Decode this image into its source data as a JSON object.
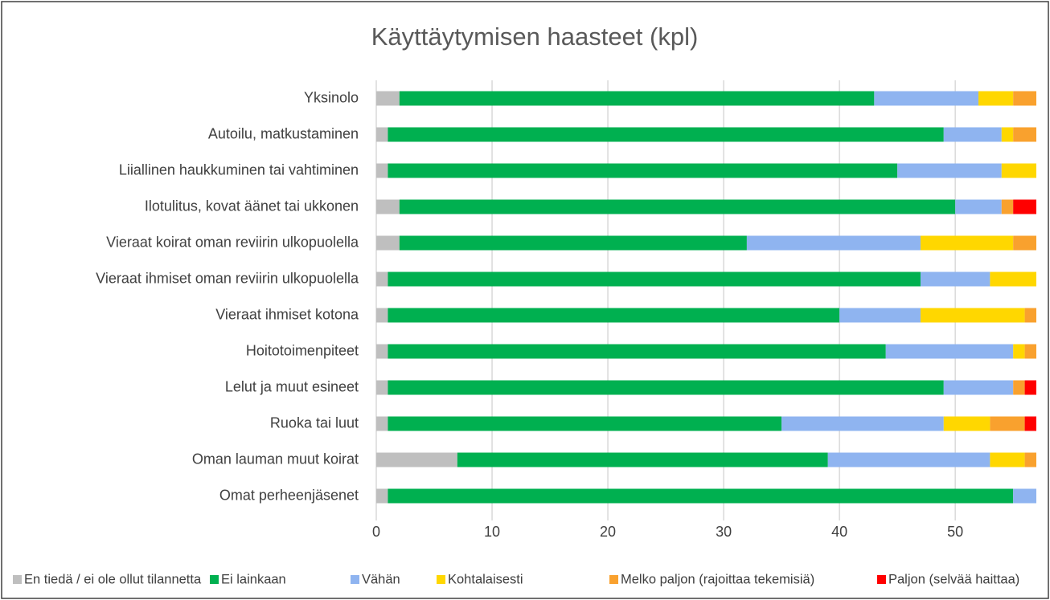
{
  "chart_data": {
    "type": "stacked_barh",
    "title": "Käyttäytymisen haasteet (kpl)",
    "categories": [
      "Yksinolo",
      "Autoilu, matkustaminen",
      "Liiallinen haukkuminen tai vahtiminen",
      "Ilotulitus, kovat äänet tai ukkonen",
      "Vieraat koirat oman reviirin ulkopuolella",
      "Vieraat ihmiset oman reviirin ulkopuolella",
      "Vieraat ihmiset kotona",
      "Hoitotoimenpiteet",
      "Lelut ja muut esineet",
      "Ruoka tai luut",
      "Oman lauman muut koirat",
      "Omat perheenjäsenet"
    ],
    "series": [
      {
        "name": "En tiedä / ei ole ollut tilannetta",
        "color": "#bfbfbf",
        "values": [
          2,
          1,
          1,
          2,
          2,
          1,
          1,
          1,
          1,
          1,
          7,
          1
        ]
      },
      {
        "name": "Ei lainkaan",
        "color": "#00b050",
        "values": [
          41,
          48,
          44,
          48,
          30,
          46,
          39,
          43,
          48,
          34,
          32,
          54
        ]
      },
      {
        "name": "Vähän",
        "color": "#8fb4f0",
        "values": [
          9,
          5,
          9,
          4,
          15,
          6,
          7,
          11,
          6,
          14,
          14,
          2
        ]
      },
      {
        "name": "Kohtalaisesti",
        "color": "#ffd700",
        "values": [
          3,
          1,
          3,
          0,
          8,
          4,
          9,
          1,
          0,
          4,
          3,
          0
        ]
      },
      {
        "name": "Melko paljon (rajoittaa tekemisiä)",
        "color": "#f9a12e",
        "values": [
          2,
          2,
          0,
          1,
          2,
          0,
          1,
          1,
          1,
          3,
          1,
          0
        ]
      },
      {
        "name": "Paljon (selvää haittaa)",
        "color": "#ff0000",
        "values": [
          0,
          0,
          0,
          2,
          0,
          0,
          0,
          0,
          1,
          1,
          0,
          0
        ]
      }
    ],
    "xlim": [
      0,
      57
    ],
    "xticks": [
      0,
      10,
      20,
      30,
      40,
      50
    ],
    "grid": true,
    "legend": "bottom"
  }
}
